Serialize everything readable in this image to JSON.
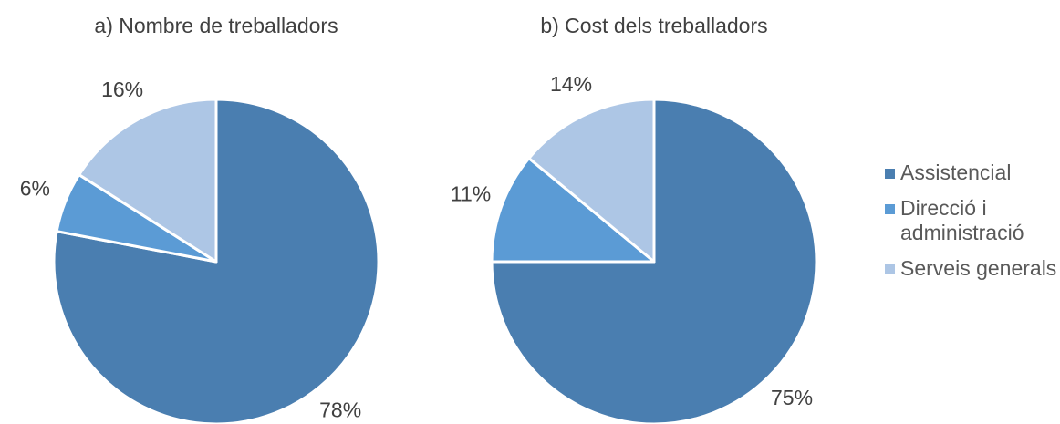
{
  "chart_data": [
    {
      "type": "pie",
      "title": "a) Nombre de treballadors",
      "values": [
        78,
        6,
        16
      ],
      "value_labels": [
        "78%",
        "6%",
        "16%"
      ]
    },
    {
      "type": "pie",
      "title": "b) Cost dels treballadors",
      "values": [
        75,
        11,
        14
      ],
      "value_labels": [
        "75%",
        "11%",
        "14%"
      ]
    }
  ],
  "legend": {
    "labels": [
      "Assistencial",
      "Direcció i administració",
      "Serveis generals"
    ],
    "colors": [
      "#4a7eb0",
      "#5b9bd5",
      "#adc6e5"
    ]
  }
}
